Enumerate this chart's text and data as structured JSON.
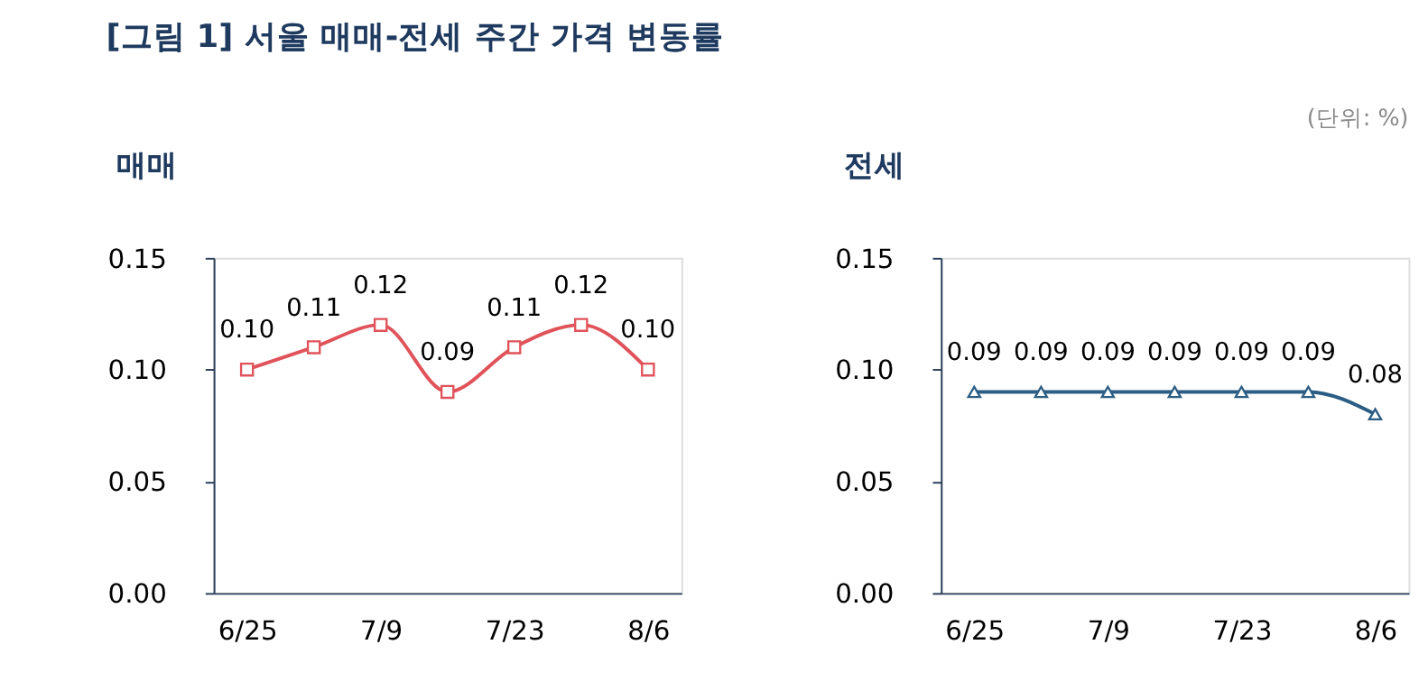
{
  "chart_data": [
    {
      "type": "line",
      "title": "[그림 1] 서울 매매-전세 주간 가격 변동률",
      "subtitle": "매매",
      "categories": [
        "6/25",
        null,
        "7/9",
        null,
        "7/23",
        null,
        "8/6"
      ],
      "series": [
        {
          "color": "#e0535a",
          "values": [
            0.1,
            0.11,
            0.12,
            0.09,
            0.11,
            0.12,
            0.1
          ],
          "value_labels": [
            "0.10",
            "0.11",
            "0.12",
            "0.09",
            "0.11",
            "0.12",
            "0.10"
          ]
        }
      ],
      "ylim": [
        0,
        0.15
      ],
      "yticks": [
        {
          "value": 0,
          "label": "0.00"
        },
        {
          "value": 0.05,
          "label": "0.05"
        },
        {
          "value": 0.1,
          "label": "0.10"
        },
        {
          "value": 0.15,
          "label": "0.15"
        }
      ],
      "marker": "square",
      "line_style": "solid",
      "grid": false
    },
    {
      "type": "line",
      "subtitle": "전세",
      "annotations": [
        "(단위: %)"
      ],
      "categories": [
        "6/25",
        null,
        "7/9",
        null,
        "7/23",
        null,
        "8/6"
      ],
      "series": [
        {
          "color": "#2c5d84",
          "values": [
            0.09,
            0.09,
            0.09,
            0.09,
            0.09,
            0.09,
            0.08
          ],
          "value_labels": [
            "0.09",
            "0.09",
            "0.09",
            "0.09",
            "0.09",
            "0.09",
            "0.08"
          ]
        }
      ],
      "ylim": [
        0,
        0.15
      ],
      "yticks": [
        {
          "value": 0,
          "label": "0.00"
        },
        {
          "value": 0.05,
          "label": "0.05"
        },
        {
          "value": 0.1,
          "label": "0.10"
        },
        {
          "value": 0.15,
          "label": "0.15"
        }
      ],
      "marker": "triangle",
      "line_style": "solid",
      "grid": false
    }
  ]
}
